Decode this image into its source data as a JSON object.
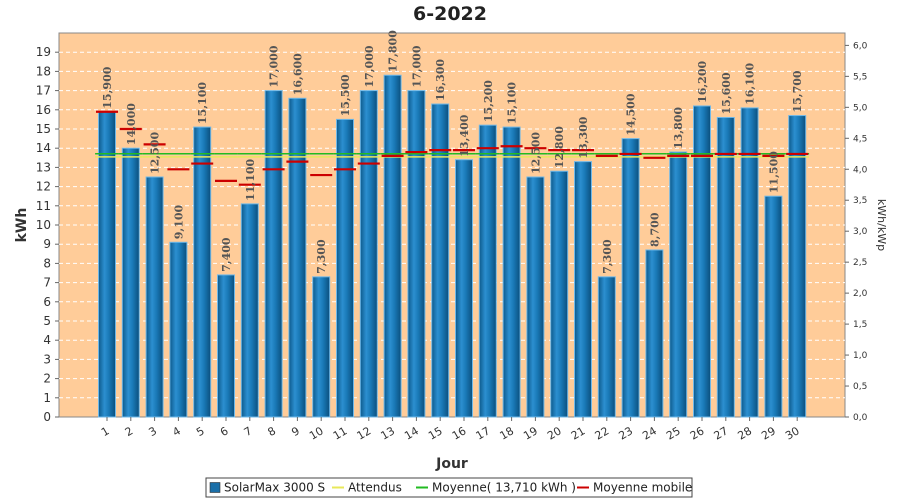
{
  "chart_data": {
    "type": "bar",
    "title": "6-2022",
    "xlabel": "Jour",
    "ylabel": "kWh",
    "y2label": "kWh/kWp",
    "ylim": [
      0,
      20
    ],
    "y2lim": [
      0,
      6.2
    ],
    "y_ticks": [
      "0",
      "1",
      "2",
      "3",
      "4",
      "5",
      "6",
      "7",
      "8",
      "9",
      "10",
      "11",
      "12",
      "13",
      "14",
      "15",
      "16",
      "17",
      "18",
      "19"
    ],
    "y2_ticks": [
      "0,0",
      "0,5",
      "1,0",
      "1,5",
      "2,0",
      "2,5",
      "3,0",
      "3,5",
      "4,0",
      "4,5",
      "5,0",
      "5,5",
      "6,0"
    ],
    "categories": [
      "1",
      "2",
      "3",
      "4",
      "5",
      "6",
      "7",
      "8",
      "9",
      "10",
      "11",
      "12",
      "13",
      "14",
      "15",
      "16",
      "17",
      "18",
      "19",
      "20",
      "21",
      "22",
      "23",
      "24",
      "25",
      "26",
      "27",
      "28",
      "29",
      "30"
    ],
    "series": [
      {
        "name": "SolarMax 3000 S",
        "color": "#1a6fa8",
        "values": [
          15.9,
          14.0,
          12.5,
          9.1,
          15.1,
          7.4,
          11.1,
          17.0,
          16.6,
          7.3,
          15.5,
          17.0,
          17.8,
          17.0,
          16.3,
          13.4,
          15.2,
          15.1,
          12.5,
          12.8,
          13.3,
          7.3,
          14.5,
          8.7,
          13.8,
          16.2,
          15.6,
          16.1,
          11.5,
          15.7
        ],
        "labels": [
          "15,900",
          "14,000",
          "12,500",
          "9,100",
          "15,100",
          "7,400",
          "11,100",
          "17,000",
          "16,600",
          "7,300",
          "15,500",
          "17,000",
          "17,800",
          "17,000",
          "16,300",
          "13,400",
          "15,200",
          "15,100",
          "12,500",
          "12,800",
          "13,300",
          "7,300",
          "14,500",
          "8,700",
          "13,800",
          "16,200",
          "15,600",
          "16,100",
          "11,500",
          "15,700"
        ]
      },
      {
        "name": "Attendus",
        "color": "#e8e85a",
        "values": [
          13.55,
          13.55,
          13.55,
          13.55,
          13.55,
          13.55,
          13.55,
          13.55,
          13.55,
          13.55,
          13.55,
          13.55,
          13.55,
          13.55,
          13.55,
          13.55,
          13.55,
          13.55,
          13.55,
          13.55,
          13.55,
          13.55,
          13.55,
          13.55,
          13.55,
          13.55,
          13.55,
          13.55,
          13.55,
          13.55
        ]
      },
      {
        "name": "Moyenne( 13,710 kWh )",
        "color": "#22bb22",
        "values": [
          13.71,
          13.71,
          13.71,
          13.71,
          13.71,
          13.71,
          13.71,
          13.71,
          13.71,
          13.71,
          13.71,
          13.71,
          13.71,
          13.71,
          13.71,
          13.71,
          13.71,
          13.71,
          13.71,
          13.71,
          13.71,
          13.71,
          13.71,
          13.71,
          13.71,
          13.71,
          13.71,
          13.71,
          13.71,
          13.71
        ]
      },
      {
        "name": "Moyenne mobile",
        "color": "#cc0000",
        "values": [
          15.9,
          15.0,
          14.2,
          12.9,
          13.2,
          12.3,
          12.1,
          12.9,
          13.3,
          12.6,
          12.9,
          13.2,
          13.6,
          13.8,
          13.9,
          13.9,
          14.0,
          14.1,
          14.0,
          13.9,
          13.9,
          13.6,
          13.7,
          13.5,
          13.6,
          13.6,
          13.7,
          13.7,
          13.6,
          13.7
        ]
      }
    ],
    "legend_position": "bottom",
    "grid": true
  }
}
